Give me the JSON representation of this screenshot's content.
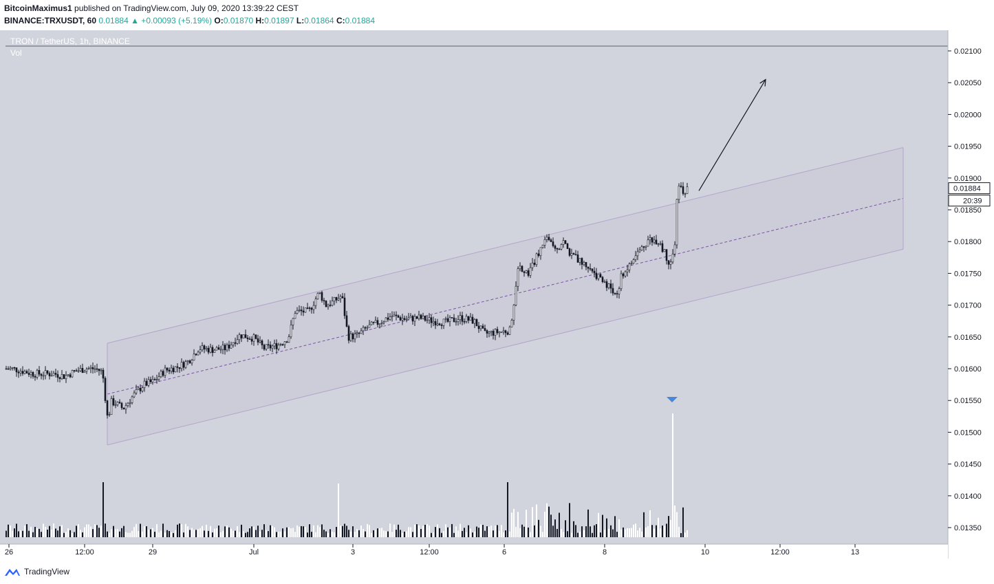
{
  "header": {
    "author": "BitcoinMaximus1",
    "published": "published on TradingView.com, July 09, 2020 13:39:22 CEST",
    "symbol": "BINANCE:TRXUSDT, 60",
    "last": "0.01884",
    "change": "▲ +0.00093 (+5.19%)",
    "o_label": "O:",
    "o_value": "0.01870",
    "h_label": "H:",
    "h_value": "0.01897",
    "l_label": "L:",
    "l_value": "0.01864",
    "c_label": "C:",
    "c_value": "0.01884"
  },
  "pane": {
    "title": "TRON / TetherUS, 1h, BINANCE",
    "vol_label": "Vol",
    "last_price_tag": "0.01884",
    "countdown_tag": "20:39"
  },
  "footer": {
    "logo_text": "TradingView"
  },
  "colors": {
    "background": "#d1d4dc",
    "channel_fill": "#c9c6d6",
    "channel_line": "#b2a4cc",
    "channel_mid": "#7b52a3",
    "candle": "#131722",
    "volume_up": "#ffffff",
    "volume_down": "#131722",
    "marker": "#4a86d8"
  },
  "chart_data": {
    "type": "candlestick",
    "x_tick_labels": [
      "26",
      "12:00",
      "29",
      "Jul",
      "3",
      "12:00",
      "6",
      "8",
      "10",
      "12:00",
      "13"
    ],
    "y_tick_labels": [
      "0.02100",
      "0.02050",
      "0.02000",
      "0.01950",
      "0.01900",
      "0.01850",
      "0.01800",
      "0.01750",
      "0.01700",
      "0.01650",
      "0.01600",
      "0.01550",
      "0.01500",
      "0.01450",
      "0.01400",
      "0.01350"
    ],
    "ylim": [
      0.01335,
      0.02115
    ],
    "price_path": [
      [
        0,
        0.016
      ],
      [
        10,
        0.016
      ],
      [
        25,
        0.01596
      ],
      [
        40,
        0.01592
      ],
      [
        55,
        0.01592
      ],
      [
        70,
        0.01592
      ],
      [
        85,
        0.01588
      ],
      [
        100,
        0.01596
      ],
      [
        115,
        0.016
      ],
      [
        130,
        0.016
      ],
      [
        140,
        0.01595
      ],
      [
        148,
        0.01515
      ],
      [
        152,
        0.01548
      ],
      [
        160,
        0.01545
      ],
      [
        170,
        0.01537
      ],
      [
        185,
        0.01558
      ],
      [
        200,
        0.01575
      ],
      [
        215,
        0.0158
      ],
      [
        230,
        0.01597
      ],
      [
        250,
        0.01603
      ],
      [
        265,
        0.01612
      ],
      [
        280,
        0.01632
      ],
      [
        300,
        0.0163
      ],
      [
        320,
        0.01632
      ],
      [
        340,
        0.01653
      ],
      [
        360,
        0.01648
      ],
      [
        375,
        0.01632
      ],
      [
        395,
        0.01637
      ],
      [
        410,
        0.01648
      ],
      [
        420,
        0.0169
      ],
      [
        440,
        0.0169
      ],
      [
        455,
        0.0172
      ],
      [
        465,
        0.017
      ],
      [
        475,
        0.01705
      ],
      [
        488,
        0.01715
      ],
      [
        497,
        0.0165
      ],
      [
        510,
        0.01652
      ],
      [
        525,
        0.01665
      ],
      [
        540,
        0.01672
      ],
      [
        560,
        0.01683
      ],
      [
        580,
        0.01678
      ],
      [
        600,
        0.0168
      ],
      [
        620,
        0.01675
      ],
      [
        640,
        0.01673
      ],
      [
        660,
        0.0168
      ],
      [
        680,
        0.01675
      ],
      [
        695,
        0.01655
      ],
      [
        710,
        0.01657
      ],
      [
        732,
        0.0166
      ],
      [
        738,
        0.017
      ],
      [
        745,
        0.0176
      ],
      [
        760,
        0.01752
      ],
      [
        775,
        0.01785
      ],
      [
        790,
        0.01808
      ],
      [
        800,
        0.0179
      ],
      [
        810,
        0.018
      ],
      [
        820,
        0.0178
      ],
      [
        835,
        0.01768
      ],
      [
        850,
        0.01758
      ],
      [
        865,
        0.01738
      ],
      [
        880,
        0.01727
      ],
      [
        887,
        0.01713
      ],
      [
        895,
        0.01748
      ],
      [
        905,
        0.0176
      ],
      [
        920,
        0.01785
      ],
      [
        935,
        0.01805
      ],
      [
        950,
        0.018
      ],
      [
        962,
        0.0177
      ],
      [
        968,
        0.01767
      ],
      [
        972,
        0.018
      ],
      [
        976,
        0.0189
      ],
      [
        985,
        0.01878
      ],
      [
        992,
        0.01884
      ]
    ],
    "channel": {
      "upper": [
        [
          148,
          0.0164
        ],
        [
          1305,
          0.01948
        ]
      ],
      "middle": [
        [
          148,
          0.0156
        ],
        [
          1305,
          0.01868
        ]
      ],
      "lower": [
        [
          148,
          0.0148
        ],
        [
          1305,
          0.01788
        ]
      ]
    },
    "arrow": [
      [
        1008,
        0.0188
      ],
      [
        1105,
        0.02055
      ]
    ],
    "last_price": 0.01884
  }
}
